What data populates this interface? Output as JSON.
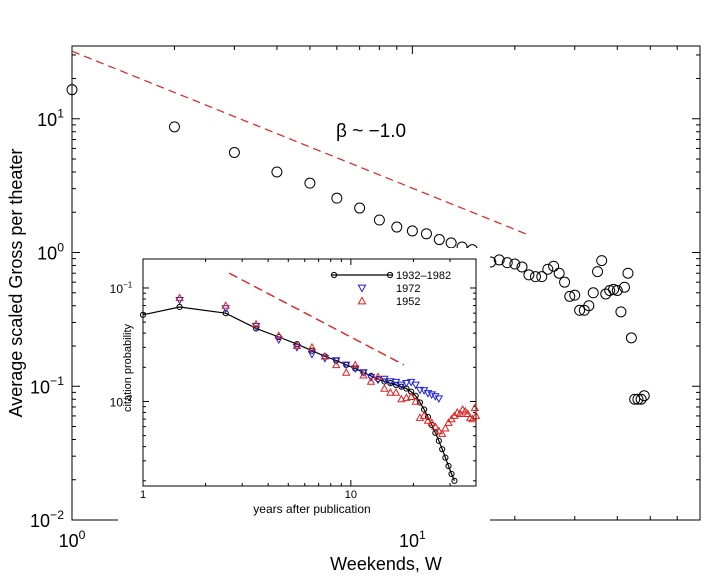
{
  "chart_data": [
    {
      "type": "scatter",
      "scale": "log-log",
      "xlabel": "Weekends, W",
      "ylabel": "Average scaled Gross per theater",
      "xlim": [
        1,
        70
      ],
      "ylim": [
        0.01,
        35
      ],
      "x_ticks": [
        {
          "value": 1,
          "base": "10",
          "exp": "0"
        },
        {
          "value": 10,
          "base": "10",
          "exp": "1"
        }
      ],
      "y_ticks": [
        {
          "value": 0.01,
          "base": "10",
          "exp": "−2"
        },
        {
          "value": 0.1,
          "base": "10",
          "exp": "−1"
        },
        {
          "value": 1,
          "base": "10",
          "exp": "0"
        },
        {
          "value": 10,
          "base": "10",
          "exp": "1"
        }
      ],
      "annotation": "β ~ −1.0",
      "fit_line": {
        "x": [
          1,
          22
        ],
        "y": [
          32,
          1.35
        ],
        "color": "#e02020"
      },
      "series": [
        {
          "name": "gross",
          "marker": "circle",
          "color": "#000000",
          "points": [
            [
              1,
              16.5
            ],
            [
              2,
              8.7
            ],
            [
              3,
              5.6
            ],
            [
              4,
              4.0
            ],
            [
              5,
              3.3
            ],
            [
              6,
              2.55
            ],
            [
              7,
              2.15
            ],
            [
              8,
              1.75
            ],
            [
              9,
              1.55
            ],
            [
              10,
              1.45
            ],
            [
              11,
              1.38
            ],
            [
              12,
              1.25
            ],
            [
              13,
              1.18
            ],
            [
              14,
              1.1
            ],
            [
              15,
              1.05
            ],
            [
              16,
              0.95
            ],
            [
              17,
              0.85
            ],
            [
              18,
              0.88
            ],
            [
              19,
              0.84
            ],
            [
              20,
              0.82
            ],
            [
              21,
              0.78
            ],
            [
              22,
              0.68
            ],
            [
              23,
              0.66
            ],
            [
              24,
              0.66
            ],
            [
              25,
              0.75
            ],
            [
              26,
              0.79
            ],
            [
              27,
              0.7
            ],
            [
              28,
              0.6
            ],
            [
              29,
              0.47
            ],
            [
              30,
              0.48
            ],
            [
              31,
              0.37
            ],
            [
              32,
              0.37
            ],
            [
              33,
              0.4
            ],
            [
              34,
              0.5
            ],
            [
              35,
              0.72
            ],
            [
              36,
              0.87
            ],
            [
              37,
              0.49
            ],
            [
              38,
              0.52
            ],
            [
              39,
              0.53
            ],
            [
              40,
              0.52
            ],
            [
              41,
              0.36
            ],
            [
              42,
              0.55
            ],
            [
              43,
              0.7
            ],
            [
              44,
              0.23
            ],
            [
              45,
              0.08
            ],
            [
              46,
              0.08
            ],
            [
              47,
              0.08
            ],
            [
              48,
              0.085
            ]
          ]
        }
      ]
    },
    {
      "type": "line",
      "scale": "log-log",
      "xlabel": "years after publication",
      "ylabel": "citation probability",
      "xlim": [
        1,
        40
      ],
      "ylim": [
        0.0018,
        0.18
      ],
      "x_ticks": [
        {
          "value": 1,
          "label": "1"
        },
        {
          "value": 10,
          "label": "10"
        }
      ],
      "y_ticks": [
        {
          "value": 0.01,
          "base": "10",
          "exp": "−2"
        },
        {
          "value": 0.1,
          "base": "10",
          "exp": "−1"
        }
      ],
      "legend_position": "top-right",
      "fit_line": {
        "x": [
          2.6,
          18
        ],
        "y": [
          0.135,
          0.021
        ],
        "color": "#e02020"
      },
      "series": [
        {
          "name": "1932–1982",
          "marker": "circle",
          "color": "#000000",
          "line": true,
          "points": [
            [
              1,
              0.058
            ],
            [
              1.5,
              0.068
            ],
            [
              2.5,
              0.06
            ],
            [
              3.5,
              0.044
            ],
            [
              4.5,
              0.037
            ],
            [
              5.5,
              0.032
            ],
            [
              6.5,
              0.028
            ],
            [
              7.5,
              0.025
            ],
            [
              8.5,
              0.023
            ],
            [
              9.5,
              0.021
            ],
            [
              10.5,
              0.0195
            ],
            [
              11.5,
              0.018
            ],
            [
              12.5,
              0.0168
            ],
            [
              13.5,
              0.0158
            ],
            [
              14.5,
              0.015
            ],
            [
              15.5,
              0.0145
            ],
            [
              16.5,
              0.014
            ],
            [
              17.5,
              0.0135
            ],
            [
              18.5,
              0.013
            ],
            [
              19.5,
              0.0122
            ],
            [
              20.5,
              0.0112
            ],
            [
              21.5,
              0.0098
            ],
            [
              22.5,
              0.0085
            ],
            [
              23.5,
              0.0073
            ],
            [
              24.5,
              0.0062
            ],
            [
              25.5,
              0.0053
            ],
            [
              26.5,
              0.0045
            ],
            [
              27.5,
              0.0038
            ],
            [
              28.5,
              0.0032
            ],
            [
              29.5,
              0.0027
            ],
            [
              30.5,
              0.0023
            ],
            [
              31.5,
              0.002
            ]
          ]
        },
        {
          "name": "1972",
          "marker": "triangle-down",
          "color": "#2020e0",
          "line": false,
          "points": [
            [
              1.5,
              0.078
            ],
            [
              2.5,
              0.066
            ],
            [
              3.5,
              0.046
            ],
            [
              4.5,
              0.035
            ],
            [
              5.5,
              0.03
            ],
            [
              6.5,
              0.026
            ],
            [
              7.5,
              0.024
            ],
            [
              8.5,
              0.023
            ],
            [
              9.5,
              0.021
            ],
            [
              10.5,
              0.0195
            ],
            [
              11.5,
              0.018
            ],
            [
              12.5,
              0.0163
            ],
            [
              13.5,
              0.0155
            ],
            [
              14.5,
              0.0158
            ],
            [
              15.5,
              0.015
            ],
            [
              16.5,
              0.0148
            ],
            [
              17.5,
              0.014
            ],
            [
              18.5,
              0.0145
            ],
            [
              19.5,
              0.0148
            ],
            [
              20.5,
              0.014
            ],
            [
              21.5,
              0.0126
            ],
            [
              22.5,
              0.0125
            ],
            [
              23.5,
              0.0118
            ],
            [
              24.5,
              0.0115
            ],
            [
              25.5,
              0.0111
            ],
            [
              26.5,
              0.0106
            ]
          ]
        },
        {
          "name": "1952",
          "marker": "triangle-up",
          "color": "#e02020",
          "line": false,
          "points": [
            [
              1.5,
              0.082
            ],
            [
              2.5,
              0.07
            ],
            [
              3.5,
              0.048
            ],
            [
              4.5,
              0.038
            ],
            [
              5.5,
              0.031
            ],
            [
              6.5,
              0.03
            ],
            [
              7.5,
              0.025
            ],
            [
              8.5,
              0.021
            ],
            [
              9.5,
              0.018
            ],
            [
              10.5,
              0.021
            ],
            [
              11.5,
              0.017
            ],
            [
              12.5,
              0.015
            ],
            [
              13.5,
              0.0165
            ],
            [
              14.5,
              0.013
            ],
            [
              15.5,
              0.012
            ],
            [
              16.5,
              0.012
            ],
            [
              17.5,
              0.0105
            ],
            [
              18.5,
              0.0108
            ],
            [
              19.5,
              0.011
            ],
            [
              20.5,
              0.01
            ],
            [
              21.5,
              0.0072
            ],
            [
              22.5,
              0.0075
            ],
            [
              23.5,
              0.0068
            ],
            [
              24.5,
              0.0065
            ],
            [
              25.5,
              0.006
            ],
            [
              26.5,
              0.0055
            ],
            [
              27.5,
              0.0052
            ],
            [
              28.5,
              0.0058
            ],
            [
              29.5,
              0.0065
            ],
            [
              30.5,
              0.007
            ],
            [
              31.5,
              0.0075
            ],
            [
              32.5,
              0.008
            ],
            [
              33.5,
              0.0078
            ],
            [
              34.5,
              0.0085
            ],
            [
              35.5,
              0.0082
            ],
            [
              36.5,
              0.0078
            ],
            [
              37.5,
              0.0072
            ],
            [
              38.5,
              0.007
            ],
            [
              39.5,
              0.0088
            ],
            [
              40,
              0.0075
            ]
          ]
        }
      ]
    }
  ]
}
